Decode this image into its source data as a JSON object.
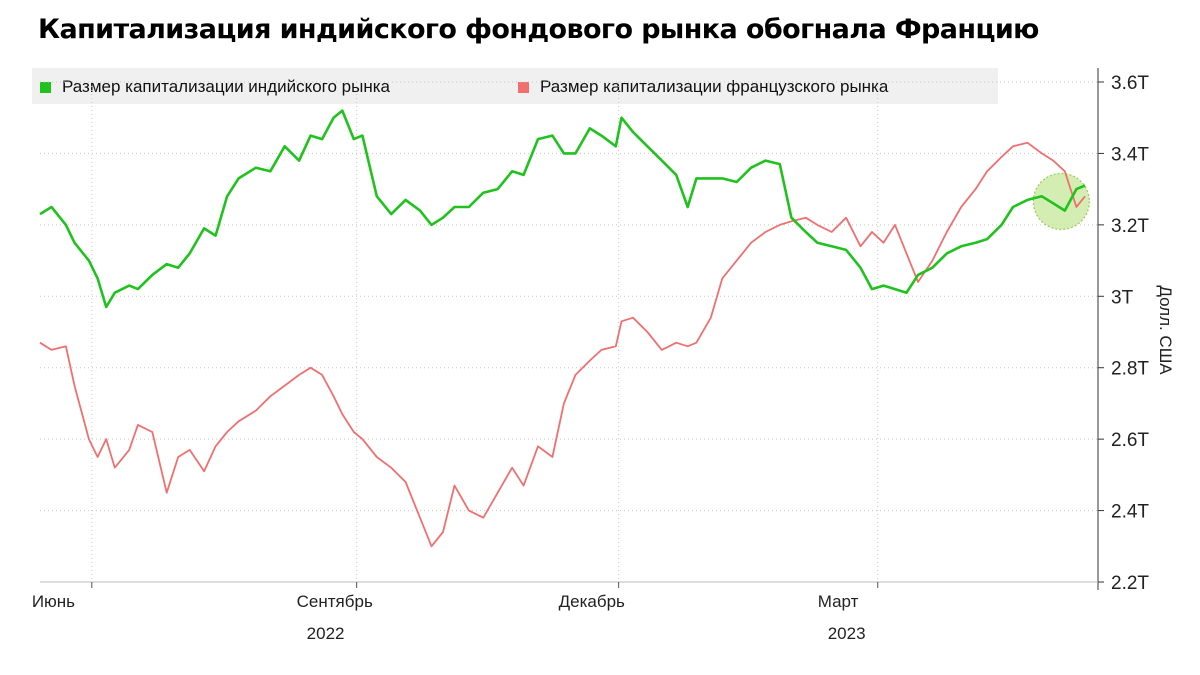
{
  "colors": {
    "india": "#20c21e",
    "france": "#f07070",
    "highlight": "#c6e79a"
  },
  "chart_data": {
    "type": "line",
    "title": "Капитализация индийского фондового рынка обогнала Францию",
    "ylabel": "Долл. США",
    "ylim": [
      2.2,
      3.6
    ],
    "yticks": [
      2.2,
      2.4,
      2.6,
      2.8,
      3.0,
      3.2,
      3.4,
      3.6
    ],
    "ytick_labels": [
      "2.2T",
      "2.4T",
      "2.6T",
      "2.8T",
      "3T",
      "3.2T",
      "3.4T",
      "3.6T"
    ],
    "xrange": [
      "2022-05-14",
      "2023-05-12"
    ],
    "xticks": [
      {
        "date": "2022-06-01",
        "label": "Июнь"
      },
      {
        "date": "2022-09-01",
        "label": "Сентябрь"
      },
      {
        "date": "2022-12-01",
        "label": "Декабрь"
      },
      {
        "date": "2023-03-01",
        "label": "Март"
      }
    ],
    "years": [
      {
        "label": "2022",
        "date": "2022-09-01"
      },
      {
        "label": "2023",
        "date": "2023-03-01"
      }
    ],
    "legend_position": "top",
    "grid": true,
    "series": [
      {
        "name": "Размер капитализации индийского рынка",
        "color": "#20c21e",
        "points": [
          [
            "2022-05-14",
            3.23
          ],
          [
            "2022-05-18",
            3.25
          ],
          [
            "2022-05-23",
            3.2
          ],
          [
            "2022-05-26",
            3.15
          ],
          [
            "2022-05-31",
            3.1
          ],
          [
            "2022-06-03",
            3.05
          ],
          [
            "2022-06-06",
            2.97
          ],
          [
            "2022-06-09",
            3.01
          ],
          [
            "2022-06-14",
            3.03
          ],
          [
            "2022-06-17",
            3.02
          ],
          [
            "2022-06-22",
            3.06
          ],
          [
            "2022-06-27",
            3.09
          ],
          [
            "2022-07-01",
            3.08
          ],
          [
            "2022-07-05",
            3.12
          ],
          [
            "2022-07-10",
            3.19
          ],
          [
            "2022-07-14",
            3.17
          ],
          [
            "2022-07-18",
            3.28
          ],
          [
            "2022-07-22",
            3.33
          ],
          [
            "2022-07-28",
            3.36
          ],
          [
            "2022-08-02",
            3.35
          ],
          [
            "2022-08-07",
            3.42
          ],
          [
            "2022-08-12",
            3.38
          ],
          [
            "2022-08-16",
            3.45
          ],
          [
            "2022-08-20",
            3.44
          ],
          [
            "2022-08-24",
            3.5
          ],
          [
            "2022-08-27",
            3.52
          ],
          [
            "2022-08-31",
            3.44
          ],
          [
            "2022-09-03",
            3.45
          ],
          [
            "2022-09-08",
            3.28
          ],
          [
            "2022-09-13",
            3.23
          ],
          [
            "2022-09-18",
            3.27
          ],
          [
            "2022-09-23",
            3.24
          ],
          [
            "2022-09-27",
            3.2
          ],
          [
            "2022-10-01",
            3.22
          ],
          [
            "2022-10-05",
            3.25
          ],
          [
            "2022-10-10",
            3.25
          ],
          [
            "2022-10-15",
            3.29
          ],
          [
            "2022-10-20",
            3.3
          ],
          [
            "2022-10-25",
            3.35
          ],
          [
            "2022-10-29",
            3.34
          ],
          [
            "2022-11-03",
            3.44
          ],
          [
            "2022-11-08",
            3.45
          ],
          [
            "2022-11-12",
            3.4
          ],
          [
            "2022-11-16",
            3.4
          ],
          [
            "2022-11-21",
            3.47
          ],
          [
            "2022-11-25",
            3.45
          ],
          [
            "2022-11-30",
            3.42
          ],
          [
            "2022-12-02",
            3.5
          ],
          [
            "2022-12-06",
            3.46
          ],
          [
            "2022-12-11",
            3.42
          ],
          [
            "2022-12-16",
            3.38
          ],
          [
            "2022-12-21",
            3.34
          ],
          [
            "2022-12-25",
            3.25
          ],
          [
            "2022-12-28",
            3.33
          ],
          [
            "2023-01-02",
            3.33
          ],
          [
            "2023-01-06",
            3.33
          ],
          [
            "2023-01-11",
            3.32
          ],
          [
            "2023-01-16",
            3.36
          ],
          [
            "2023-01-21",
            3.38
          ],
          [
            "2023-01-26",
            3.37
          ],
          [
            "2023-01-30",
            3.22
          ],
          [
            "2023-02-04",
            3.18
          ],
          [
            "2023-02-08",
            3.15
          ],
          [
            "2023-02-13",
            3.14
          ],
          [
            "2023-02-18",
            3.13
          ],
          [
            "2023-02-23",
            3.08
          ],
          [
            "2023-02-27",
            3.02
          ],
          [
            "2023-03-03",
            3.03
          ],
          [
            "2023-03-07",
            3.02
          ],
          [
            "2023-03-11",
            3.01
          ],
          [
            "2023-03-15",
            3.06
          ],
          [
            "2023-03-20",
            3.08
          ],
          [
            "2023-03-25",
            3.12
          ],
          [
            "2023-03-30",
            3.14
          ],
          [
            "2023-04-04",
            3.15
          ],
          [
            "2023-04-08",
            3.16
          ],
          [
            "2023-04-13",
            3.2
          ],
          [
            "2023-04-17",
            3.25
          ],
          [
            "2023-04-22",
            3.27
          ],
          [
            "2023-04-27",
            3.28
          ],
          [
            "2023-05-01",
            3.26
          ],
          [
            "2023-05-05",
            3.24
          ],
          [
            "2023-05-09",
            3.3
          ],
          [
            "2023-05-12",
            3.31
          ]
        ]
      },
      {
        "name": "Размер капитализации французского рынка",
        "color": "#f07070",
        "points": [
          [
            "2022-05-14",
            2.87
          ],
          [
            "2022-05-18",
            2.85
          ],
          [
            "2022-05-23",
            2.86
          ],
          [
            "2022-05-26",
            2.75
          ],
          [
            "2022-05-31",
            2.6
          ],
          [
            "2022-06-03",
            2.55
          ],
          [
            "2022-06-06",
            2.6
          ],
          [
            "2022-06-09",
            2.52
          ],
          [
            "2022-06-14",
            2.57
          ],
          [
            "2022-06-17",
            2.64
          ],
          [
            "2022-06-22",
            2.62
          ],
          [
            "2022-06-27",
            2.45
          ],
          [
            "2022-07-01",
            2.55
          ],
          [
            "2022-07-05",
            2.57
          ],
          [
            "2022-07-10",
            2.51
          ],
          [
            "2022-07-14",
            2.58
          ],
          [
            "2022-07-18",
            2.62
          ],
          [
            "2022-07-22",
            2.65
          ],
          [
            "2022-07-28",
            2.68
          ],
          [
            "2022-08-02",
            2.72
          ],
          [
            "2022-08-07",
            2.75
          ],
          [
            "2022-08-12",
            2.78
          ],
          [
            "2022-08-16",
            2.8
          ],
          [
            "2022-08-20",
            2.78
          ],
          [
            "2022-08-24",
            2.72
          ],
          [
            "2022-08-27",
            2.67
          ],
          [
            "2022-08-31",
            2.62
          ],
          [
            "2022-09-03",
            2.6
          ],
          [
            "2022-09-08",
            2.55
          ],
          [
            "2022-09-13",
            2.52
          ],
          [
            "2022-09-18",
            2.48
          ],
          [
            "2022-09-23",
            2.38
          ],
          [
            "2022-09-27",
            2.3
          ],
          [
            "2022-10-01",
            2.34
          ],
          [
            "2022-10-05",
            2.47
          ],
          [
            "2022-10-10",
            2.4
          ],
          [
            "2022-10-15",
            2.38
          ],
          [
            "2022-10-20",
            2.45
          ],
          [
            "2022-10-25",
            2.52
          ],
          [
            "2022-10-29",
            2.47
          ],
          [
            "2022-11-03",
            2.58
          ],
          [
            "2022-11-08",
            2.55
          ],
          [
            "2022-11-12",
            2.7
          ],
          [
            "2022-11-16",
            2.78
          ],
          [
            "2022-11-21",
            2.82
          ],
          [
            "2022-11-25",
            2.85
          ],
          [
            "2022-11-30",
            2.86
          ],
          [
            "2022-12-02",
            2.93
          ],
          [
            "2022-12-06",
            2.94
          ],
          [
            "2022-12-11",
            2.9
          ],
          [
            "2022-12-16",
            2.85
          ],
          [
            "2022-12-21",
            2.87
          ],
          [
            "2022-12-25",
            2.86
          ],
          [
            "2022-12-28",
            2.87
          ],
          [
            "2023-01-02",
            2.94
          ],
          [
            "2023-01-06",
            3.05
          ],
          [
            "2023-01-11",
            3.1
          ],
          [
            "2023-01-16",
            3.15
          ],
          [
            "2023-01-21",
            3.18
          ],
          [
            "2023-01-26",
            3.2
          ],
          [
            "2023-01-30",
            3.21
          ],
          [
            "2023-02-04",
            3.22
          ],
          [
            "2023-02-08",
            3.2
          ],
          [
            "2023-02-13",
            3.18
          ],
          [
            "2023-02-18",
            3.22
          ],
          [
            "2023-02-23",
            3.14
          ],
          [
            "2023-02-27",
            3.18
          ],
          [
            "2023-03-03",
            3.15
          ],
          [
            "2023-03-07",
            3.2
          ],
          [
            "2023-03-11",
            3.12
          ],
          [
            "2023-03-15",
            3.04
          ],
          [
            "2023-03-20",
            3.1
          ],
          [
            "2023-03-25",
            3.18
          ],
          [
            "2023-03-30",
            3.25
          ],
          [
            "2023-04-04",
            3.3
          ],
          [
            "2023-04-08",
            3.35
          ],
          [
            "2023-04-13",
            3.39
          ],
          [
            "2023-04-17",
            3.42
          ],
          [
            "2023-04-22",
            3.43
          ],
          [
            "2023-04-27",
            3.4
          ],
          [
            "2023-05-01",
            3.38
          ],
          [
            "2023-05-05",
            3.35
          ],
          [
            "2023-05-09",
            3.25
          ],
          [
            "2023-05-12",
            3.28
          ]
        ]
      }
    ]
  }
}
